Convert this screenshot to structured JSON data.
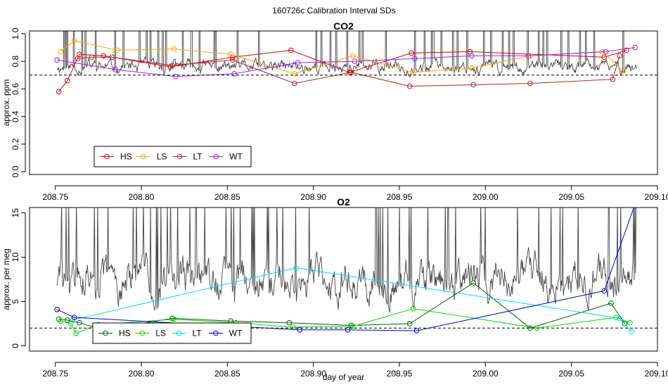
{
  "figure_title": "160726c   Calibration Interval SDs",
  "chart_data": [
    {
      "id": "co2",
      "type": "line",
      "title": "CO2",
      "xlabel": "",
      "ylabel": "approx. ppm",
      "xlim": [
        208.735,
        209.1
      ],
      "ylim": [
        -0.02,
        1.02
      ],
      "xticks": [
        "208.75",
        "208.80",
        "208.85",
        "208.90",
        "208.95",
        "209.00",
        "209.05",
        "209.10"
      ],
      "yticks": [
        "0.0",
        "0.2",
        "0.4",
        "0.6",
        "0.8",
        "1.0"
      ],
      "reference_line": 0.7,
      "background_trace": {
        "name": "raw",
        "color": "#444444",
        "base": 0.76,
        "amp": 0.09,
        "seed": 11
      },
      "legend": {
        "position": "bottom-left",
        "entries": [
          "HS",
          "LS",
          "LT",
          "WT"
        ]
      },
      "series": [
        {
          "name": "HS",
          "color": "#dd0000",
          "x": [
            208.752,
            208.757,
            208.764,
            208.778,
            208.817,
            208.853,
            208.887,
            208.921,
            208.957,
            208.991,
            209.069,
            209.082
          ],
          "y": [
            0.58,
            0.66,
            0.85,
            0.84,
            0.76,
            0.83,
            0.88,
            0.72,
            0.86,
            0.87,
            0.83,
            0.88
          ]
        },
        {
          "name": "LS",
          "color": "#ffa500",
          "x": [
            208.753,
            208.761,
            208.786,
            208.819,
            208.852,
            208.889,
            208.923,
            208.958,
            208.992,
            209.026,
            209.068,
            209.08
          ],
          "y": [
            0.87,
            0.95,
            0.88,
            0.89,
            0.85,
            0.71,
            0.84,
            0.72,
            0.75,
            0.84,
            0.87,
            0.73
          ]
        },
        {
          "name": "LT",
          "color": "#b22222",
          "x": [
            208.763,
            208.771,
            208.783,
            208.818,
            208.853,
            208.889,
            208.922,
            208.956,
            208.993,
            209.026,
            209.074,
            209.078
          ],
          "y": [
            0.82,
            0.83,
            0.83,
            0.77,
            0.81,
            0.64,
            0.72,
            0.62,
            0.63,
            0.64,
            0.67,
            0.84
          ]
        },
        {
          "name": "WT",
          "color": "#a020f0",
          "x": [
            208.751,
            208.785,
            208.82,
            208.854,
            208.891,
            208.924,
            208.959,
            208.992,
            209.025,
            209.07,
            209.087
          ],
          "y": [
            0.81,
            0.74,
            0.69,
            0.71,
            0.79,
            0.8,
            0.82,
            0.84,
            0.84,
            0.87,
            0.9
          ]
        }
      ]
    },
    {
      "id": "o2",
      "type": "line",
      "title": "O2",
      "xlabel": "day of year",
      "ylabel": "approx. per meg",
      "xlim": [
        208.735,
        209.1
      ],
      "ylim": [
        -0.6,
        15.6
      ],
      "xticks": [
        "208.75",
        "208.80",
        "208.85",
        "208.90",
        "208.95",
        "209.00",
        "209.05",
        "209.10"
      ],
      "yticks": [
        "0",
        "5",
        "10",
        "15"
      ],
      "reference_line": 2.0,
      "background_trace": {
        "name": "raw",
        "color": "#444444",
        "base": 7.5,
        "amp": 4.5,
        "seed": 29
      },
      "legend": {
        "position": "bottom-left",
        "entries": [
          "HS",
          "LS",
          "LT",
          "WT"
        ]
      },
      "series": [
        {
          "name": "HS",
          "color": "#006400",
          "x": [
            208.752,
            208.757,
            208.764,
            208.778,
            208.818,
            208.852,
            208.886,
            208.922,
            208.956,
            208.993,
            209.026,
            209.073,
            209.081
          ],
          "y": [
            3.0,
            2.9,
            2.6,
            1.8,
            3.1,
            2.8,
            2.6,
            2.3,
            2.5,
            7.1,
            2.0,
            4.8,
            2.5
          ]
        },
        {
          "name": "LS",
          "color": "#00dd00",
          "x": [
            208.753,
            208.759,
            208.762,
            208.775,
            208.819,
            208.855,
            208.888,
            208.923,
            208.958,
            209.03,
            209.076,
            209.084
          ],
          "y": [
            2.8,
            2.5,
            1.4,
            2.4,
            3.0,
            2.6,
            2.1,
            2.2,
            4.2,
            2.0,
            3.2,
            2.6
          ]
        },
        {
          "name": "LT",
          "color": "#00e0e0",
          "x": [
            208.76,
            208.89,
            209.078,
            209.085
          ],
          "y": [
            2.9,
            8.8,
            3.1,
            1.6
          ]
        },
        {
          "name": "WT",
          "color": "#0000dd",
          "x": [
            208.751,
            208.761,
            208.892,
            208.92,
            208.96,
            209.069,
            209.087
          ],
          "y": [
            4.1,
            3.2,
            1.8,
            1.8,
            1.7,
            6.2,
            16.0
          ]
        }
      ]
    }
  ]
}
